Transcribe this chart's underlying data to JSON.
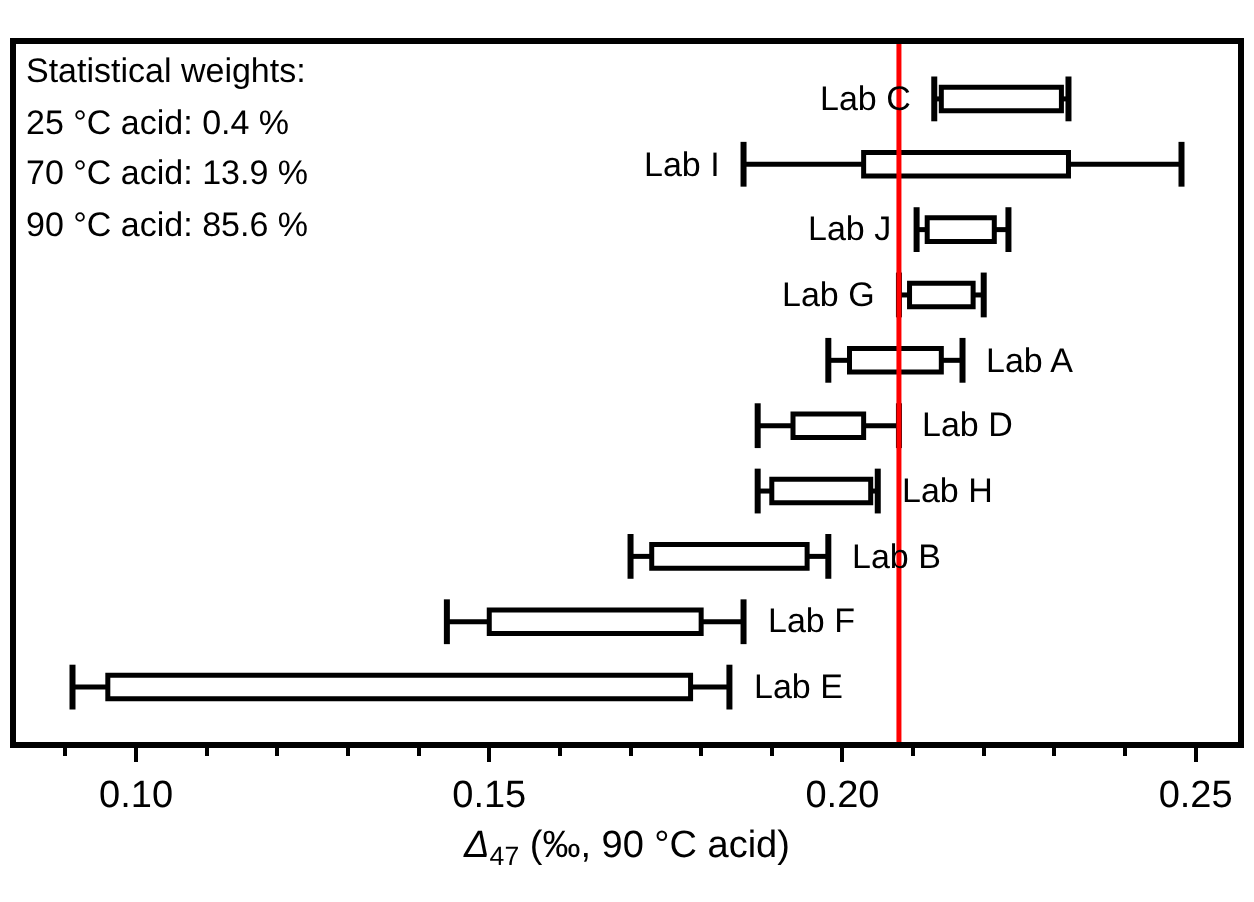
{
  "chart_data": {
    "type": "bar",
    "orientation": "horizontal",
    "categories": [
      "Lab C",
      "Lab I",
      "Lab J",
      "Lab G",
      "Lab A",
      "Lab D",
      "Lab H",
      "Lab B",
      "Lab F",
      "Lab E"
    ],
    "base": [
      0.214,
      0.203,
      0.212,
      0.2095,
      0.201,
      0.193,
      0.19,
      0.173,
      0.15,
      0.096
    ],
    "values": [
      0.017,
      0.029,
      0.0095,
      0.009,
      0.013,
      0.01,
      0.014,
      0.022,
      0.03,
      0.0825
    ],
    "errors": [
      [
        0.213,
        0.232
      ],
      [
        0.186,
        0.248
      ],
      [
        0.2105,
        0.2235
      ],
      [
        0.208,
        0.22
      ],
      [
        0.198,
        0.217
      ],
      [
        0.188,
        0.208
      ],
      [
        0.188,
        0.205
      ],
      [
        0.17,
        0.198
      ],
      [
        0.144,
        0.186
      ],
      [
        0.091,
        0.184
      ]
    ],
    "color": "#ffffff",
    "xlabel": "Δ$_{47}$ (‰, 90 °C acid)",
    "xlim": [
      0.083,
      0.256
    ],
    "xticks": [
      {
        "value": 0.09,
        "label": null
      },
      {
        "value": 0.1,
        "label": "0.10"
      },
      {
        "value": 0.11,
        "label": null
      },
      {
        "value": 0.12,
        "label": null
      },
      {
        "value": 0.13,
        "label": null
      },
      {
        "value": 0.14,
        "label": null
      },
      {
        "value": 0.15,
        "label": "0.15"
      },
      {
        "value": 0.16,
        "label": null
      },
      {
        "value": 0.17,
        "label": null
      },
      {
        "value": 0.18,
        "label": null
      },
      {
        "value": 0.19,
        "label": null
      },
      {
        "value": 0.2,
        "label": "0.20"
      },
      {
        "value": 0.21,
        "label": null
      },
      {
        "value": 0.22,
        "label": null
      },
      {
        "value": 0.23,
        "label": null
      },
      {
        "value": 0.24,
        "label": null
      },
      {
        "value": 0.25,
        "label": "0.25"
      }
    ],
    "ref_lines": [
      {
        "axis": "x",
        "value": 0.208,
        "color": "#ff0000"
      }
    ],
    "annotations": [
      "Statistical weights:",
      "25 °C acid: 0.4 %",
      "70 °C acid: 13.9 %",
      "90 °C acid: 85.6 %"
    ],
    "tick_labels": "x"
  }
}
